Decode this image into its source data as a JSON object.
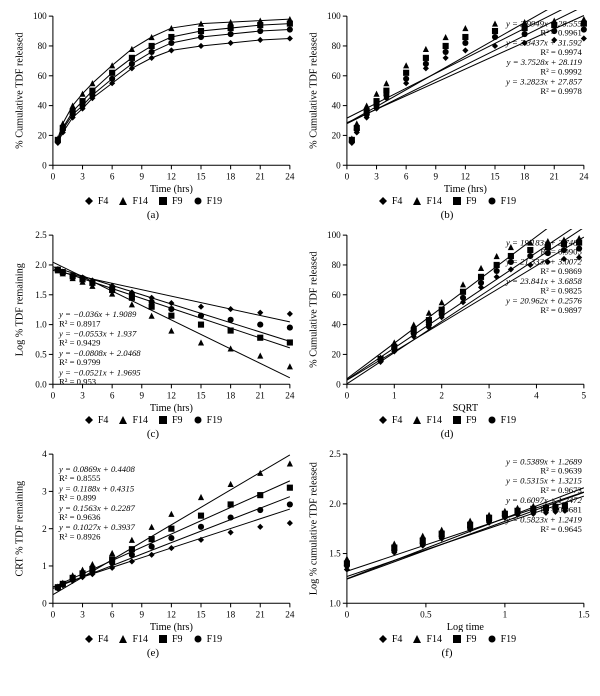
{
  "colors": {
    "bg": "#ffffff",
    "axis": "#000000",
    "line": "#000000",
    "text": "#000000"
  },
  "font": {
    "family": "Times New Roman",
    "size_axis": 10,
    "size_eq": 9,
    "size_caption": 11
  },
  "markers": {
    "F4": "diamond",
    "F14": "triangle",
    "F9": "square",
    "F19": "circle"
  },
  "legend_order": [
    "F4",
    "F14",
    "F9",
    "F19"
  ],
  "panels": {
    "a": {
      "type": "scatter-line",
      "caption": "(a)",
      "xlabel": "Time (hrs)",
      "ylabel": "% Cumulative TDF released",
      "xlim": [
        0,
        24
      ],
      "xtick_step": 3,
      "ylim": [
        0,
        100
      ],
      "ytick_step": 20,
      "curve": true,
      "series": {
        "F4": {
          "x": [
            0.5,
            1,
            2,
            3,
            4,
            6,
            8,
            10,
            12,
            15,
            18,
            21,
            24
          ],
          "y": [
            15,
            22,
            32,
            38,
            45,
            55,
            65,
            72,
            77,
            80,
            82,
            84,
            85
          ]
        },
        "F14": {
          "x": [
            0.5,
            1,
            2,
            3,
            4,
            6,
            8,
            10,
            12,
            15,
            18,
            21,
            24
          ],
          "y": [
            18,
            28,
            40,
            48,
            55,
            67,
            78,
            86,
            92,
            95,
            96,
            97,
            98
          ]
        },
        "F9": {
          "x": [
            0.5,
            1,
            2,
            3,
            4,
            6,
            8,
            10,
            12,
            15,
            18,
            21,
            24
          ],
          "y": [
            17,
            25,
            36,
            43,
            50,
            62,
            72,
            80,
            86,
            90,
            92,
            94,
            95
          ]
        },
        "F19": {
          "x": [
            0.5,
            1,
            2,
            3,
            4,
            6,
            8,
            10,
            12,
            15,
            18,
            21,
            24
          ],
          "y": [
            16,
            24,
            34,
            40,
            47,
            58,
            68,
            76,
            82,
            86,
            88,
            90,
            91
          ]
        }
      },
      "equations": []
    },
    "b": {
      "type": "scatter-line",
      "caption": "(b)",
      "xlabel": "Time (hrs)",
      "ylabel": "% Cumulative TDF released",
      "xlim": [
        0,
        24
      ],
      "xtick_step": 3,
      "ylim": [
        0,
        100
      ],
      "ytick_step": 20,
      "curve": false,
      "series": {
        "F4": {
          "x": [
            0.5,
            1,
            2,
            3,
            4,
            6,
            8,
            10,
            12,
            15,
            18,
            21,
            24
          ],
          "y": [
            15,
            22,
            32,
            38,
            45,
            55,
            65,
            72,
            77,
            80,
            82,
            84,
            85
          ],
          "fit_m": 2.9949,
          "fit_b": 28.555
        },
        "F14": {
          "x": [
            0.5,
            1,
            2,
            3,
            4,
            6,
            8,
            10,
            12,
            15,
            18,
            21,
            24
          ],
          "y": [
            18,
            28,
            40,
            48,
            55,
            67,
            78,
            86,
            92,
            95,
            96,
            97,
            98
          ],
          "fit_m": 3.7528,
          "fit_b": 28.119
        },
        "F9": {
          "x": [
            0.5,
            1,
            2,
            3,
            4,
            6,
            8,
            10,
            12,
            15,
            18,
            21,
            24
          ],
          "y": [
            17,
            25,
            36,
            43,
            50,
            62,
            72,
            80,
            86,
            90,
            92,
            94,
            95
          ],
          "fit_m": 3.3437,
          "fit_b": 31.592
        },
        "F19": {
          "x": [
            0.5,
            1,
            2,
            3,
            4,
            6,
            8,
            10,
            12,
            15,
            18,
            21,
            24
          ],
          "y": [
            16,
            24,
            34,
            40,
            47,
            58,
            68,
            76,
            82,
            86,
            88,
            90,
            91
          ],
          "fit_m": 3.2823,
          "fit_b": 27.857
        }
      },
      "equations": [
        {
          "text": "y = 2.9949x + 28.555",
          "r2": "R² = 0.9961"
        },
        {
          "text": "y = 3.3437x + 31.592",
          "r2": "R² = 0.9974"
        },
        {
          "text": "y = 3.7528x + 28.119",
          "r2": "R² = 0.9992"
        },
        {
          "text": "y = 3.2823x + 27.857",
          "r2": "R² = 0.9978"
        }
      ]
    },
    "c": {
      "type": "scatter-line",
      "caption": "(c)",
      "xlabel": "Time (hrs)",
      "ylabel": "Log % TDF remaining",
      "xlim": [
        0,
        24
      ],
      "xtick_step": 3,
      "ylim": [
        0,
        2.5
      ],
      "ytick_step": 0.5,
      "curve": false,
      "series": {
        "F4": {
          "x": [
            0.5,
            1,
            2,
            3,
            4,
            6,
            8,
            10,
            12,
            15,
            18,
            21,
            24
          ],
          "y": [
            1.93,
            1.89,
            1.83,
            1.79,
            1.74,
            1.65,
            1.54,
            1.45,
            1.36,
            1.3,
            1.26,
            1.2,
            1.18
          ],
          "fit_m": -0.036,
          "fit_b": 1.9089
        },
        "F14": {
          "x": [
            0.5,
            1,
            2,
            3,
            4,
            6,
            8,
            10,
            12,
            15,
            18,
            21,
            24
          ],
          "y": [
            1.91,
            1.86,
            1.78,
            1.72,
            1.65,
            1.52,
            1.34,
            1.15,
            0.9,
            0.7,
            0.6,
            0.48,
            0.3
          ],
          "fit_m": -0.0808,
          "fit_b": 2.0468
        },
        "F9": {
          "x": [
            0.5,
            1,
            2,
            3,
            4,
            6,
            8,
            10,
            12,
            15,
            18,
            21,
            24
          ],
          "y": [
            1.92,
            1.88,
            1.81,
            1.76,
            1.7,
            1.58,
            1.45,
            1.3,
            1.15,
            1.0,
            0.9,
            0.78,
            0.7
          ],
          "fit_m": -0.0553,
          "fit_b": 1.937
        },
        "F19": {
          "x": [
            0.5,
            1,
            2,
            3,
            4,
            6,
            8,
            10,
            12,
            15,
            18,
            21,
            24
          ],
          "y": [
            1.92,
            1.88,
            1.82,
            1.78,
            1.72,
            1.62,
            1.51,
            1.38,
            1.26,
            1.15,
            1.08,
            1.0,
            0.95
          ],
          "fit_m": -0.0521,
          "fit_b": 1.9695
        }
      },
      "equations": [
        {
          "text": "y = −0.036x + 1.9089",
          "r2": "R² = 0.8917"
        },
        {
          "text": "y = −0.0553x + 1.937",
          "r2": "R² = 0.9429"
        },
        {
          "text": "y = −0.0808x + 2.0468",
          "r2": "R² = 0.9799"
        },
        {
          "text": "y = −0.0521x + 1.9695",
          "r2": "R² = 0.953"
        }
      ]
    },
    "d": {
      "type": "scatter-line",
      "caption": "(d)",
      "xlabel": "SQRT",
      "ylabel": "% Cumulative TDF released",
      "xlim": [
        0,
        5
      ],
      "xtick_step": 1,
      "ylim": [
        0,
        100
      ],
      "ytick_step": 20,
      "curve": false,
      "series": {
        "F4": {
          "x": [
            0.71,
            1,
            1.41,
            1.73,
            2,
            2.45,
            2.83,
            3.16,
            3.46,
            3.87,
            4.24,
            4.58,
            4.9
          ],
          "y": [
            15,
            22,
            32,
            38,
            45,
            55,
            65,
            72,
            77,
            80,
            82,
            84,
            85
          ],
          "fit_m": 19.183,
          "fit_b": 2.7485
        },
        "F14": {
          "x": [
            0.71,
            1,
            1.41,
            1.73,
            2,
            2.45,
            2.83,
            3.16,
            3.46,
            3.87,
            4.24,
            4.58,
            4.9
          ],
          "y": [
            18,
            28,
            40,
            48,
            55,
            67,
            78,
            86,
            92,
            95,
            96,
            97,
            98
          ],
          "fit_m": 23.841,
          "fit_b": 3.6858
        },
        "F9": {
          "x": [
            0.71,
            1,
            1.41,
            1.73,
            2,
            2.45,
            2.83,
            3.16,
            3.46,
            3.87,
            4.24,
            4.58,
            4.9
          ],
          "y": [
            17,
            25,
            36,
            43,
            50,
            62,
            72,
            80,
            86,
            90,
            92,
            94,
            95
          ],
          "fit_m": 21.333,
          "fit_b": 3.0072
        },
        "F19": {
          "x": [
            0.71,
            1,
            1.41,
            1.73,
            2,
            2.45,
            2.83,
            3.16,
            3.46,
            3.87,
            4.24,
            4.58,
            4.9
          ],
          "y": [
            16,
            24,
            34,
            40,
            47,
            58,
            68,
            76,
            82,
            86,
            88,
            90,
            91
          ],
          "fit_m": 20.962,
          "fit_b": 0.2576
        }
      },
      "equations": [
        {
          "text": "y = 19.183x + 2.7485",
          "r2": "R² = 0.9905"
        },
        {
          "text": "y = 21.333x + 3.0072",
          "r2": "R² = 0.9869"
        },
        {
          "text": "y = 23.841x + 3.6858",
          "r2": "R² = 0.9825"
        },
        {
          "text": "y = 20.962x + 0.2576",
          "r2": "R² = 0.9897"
        }
      ]
    },
    "e": {
      "type": "scatter-line",
      "caption": "(e)",
      "xlabel": "Time (hrs)",
      "ylabel": "CRT % TDF remaining",
      "xlim": [
        0,
        24
      ],
      "xtick_step": 3,
      "ylim": [
        0,
        4
      ],
      "ytick_step": 1,
      "curve": false,
      "series": {
        "F4": {
          "x": [
            0.5,
            1,
            2,
            3,
            4,
            6,
            8,
            10,
            12,
            15,
            18,
            21,
            24
          ],
          "y": [
            0.4,
            0.48,
            0.6,
            0.7,
            0.78,
            0.95,
            1.12,
            1.3,
            1.48,
            1.7,
            1.9,
            2.05,
            2.15
          ],
          "fit_m": 0.0869,
          "fit_b": 0.4408
        },
        "F14": {
          "x": [
            0.5,
            1,
            2,
            3,
            4,
            6,
            8,
            10,
            12,
            15,
            18,
            21,
            24
          ],
          "y": [
            0.45,
            0.55,
            0.75,
            0.9,
            1.05,
            1.35,
            1.7,
            2.05,
            2.4,
            2.85,
            3.2,
            3.5,
            3.75
          ],
          "fit_m": 0.1563,
          "fit_b": 0.2287
        },
        "F9": {
          "x": [
            0.5,
            1,
            2,
            3,
            4,
            6,
            8,
            10,
            12,
            15,
            18,
            21,
            24
          ],
          "y": [
            0.43,
            0.52,
            0.68,
            0.8,
            0.92,
            1.18,
            1.45,
            1.72,
            2.0,
            2.35,
            2.65,
            2.9,
            3.1
          ],
          "fit_m": 0.1188,
          "fit_b": 0.4315
        },
        "F19": {
          "x": [
            0.5,
            1,
            2,
            3,
            4,
            6,
            8,
            10,
            12,
            15,
            18,
            21,
            24
          ],
          "y": [
            0.41,
            0.5,
            0.64,
            0.75,
            0.86,
            1.08,
            1.3,
            1.52,
            1.75,
            2.05,
            2.3,
            2.5,
            2.65
          ],
          "fit_m": 0.1027,
          "fit_b": 0.3937
        }
      },
      "equations": [
        {
          "text": "y = 0.0869x + 0.4408",
          "r2": "R² = 0.8555"
        },
        {
          "text": "y = 0.1188x + 0.4315",
          "r2": "R² = 0.899"
        },
        {
          "text": "y = 0.1563x + 0.2287",
          "r2": "R² = 0.9636"
        },
        {
          "text": "y = 0.1027x + 0.3937",
          "r2": "R² = 0.8926"
        }
      ]
    },
    "f": {
      "type": "scatter-line",
      "caption": "(f)",
      "xlabel": "Log time",
      "ylabel": "Log % cumulative TDF released",
      "xlim": [
        0,
        1.5
      ],
      "xtick_step": 0.5,
      "ylim": [
        1,
        2.5
      ],
      "ytick_step": 0.5,
      "curve": false,
      "series": {
        "F4": {
          "x": [
            0,
            0.3,
            0.48,
            0.6,
            0.78,
            0.9,
            1.0,
            1.08,
            1.18,
            1.26,
            1.32,
            1.38
          ],
          "y": [
            1.34,
            1.51,
            1.58,
            1.65,
            1.74,
            1.81,
            1.86,
            1.89,
            1.9,
            1.91,
            1.92,
            1.93
          ],
          "fit_m": 0.5389,
          "fit_b": 1.2689
        },
        "F14": {
          "x": [
            0,
            0.3,
            0.48,
            0.6,
            0.78,
            0.9,
            1.0,
            1.08,
            1.18,
            1.26,
            1.32,
            1.38
          ],
          "y": [
            1.45,
            1.6,
            1.68,
            1.74,
            1.83,
            1.89,
            1.93,
            1.96,
            1.98,
            1.98,
            1.99,
            1.99
          ],
          "fit_m": 0.6097,
          "fit_b": 1.2472
        },
        "F9": {
          "x": [
            0,
            0.3,
            0.48,
            0.6,
            0.78,
            0.9,
            1.0,
            1.08,
            1.18,
            1.26,
            1.32,
            1.38
          ],
          "y": [
            1.4,
            1.56,
            1.63,
            1.7,
            1.79,
            1.86,
            1.9,
            1.93,
            1.95,
            1.96,
            1.97,
            1.98
          ],
          "fit_m": 0.5315,
          "fit_b": 1.3215
        },
        "F19": {
          "x": [
            0,
            0.3,
            0.48,
            0.6,
            0.78,
            0.9,
            1.0,
            1.08,
            1.18,
            1.26,
            1.32,
            1.38
          ],
          "y": [
            1.38,
            1.53,
            1.6,
            1.67,
            1.76,
            1.83,
            1.88,
            1.91,
            1.93,
            1.94,
            1.95,
            1.96
          ],
          "fit_m": 0.5823,
          "fit_b": 1.2419
        }
      },
      "equations": [
        {
          "text": "y = 0.5389x + 1.2689",
          "r2": "R² = 0.9639"
        },
        {
          "text": "y = 0.5315x + 1.3215",
          "r2": "R² = 0.9673"
        },
        {
          "text": "y = 0.6097x + 1.2472",
          "r2": "R² = 0.9681"
        },
        {
          "text": "y = 0.5823x + 1.2419",
          "r2": "R² = 0.9645"
        }
      ]
    }
  }
}
